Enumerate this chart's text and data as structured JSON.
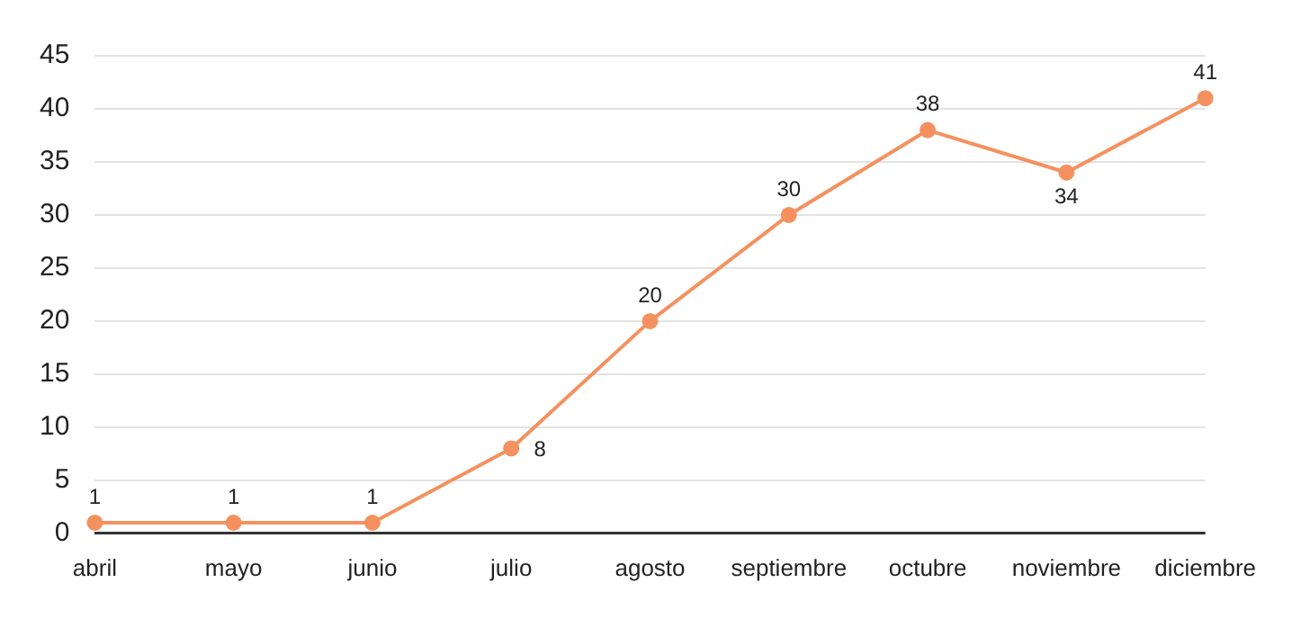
{
  "chart_data": {
    "type": "line",
    "categories": [
      "abril",
      "mayo",
      "junio",
      "julio",
      "agosto",
      "septiembre",
      "octubre",
      "noviembre",
      "diciembre"
    ],
    "values": [
      1,
      1,
      1,
      8,
      20,
      30,
      38,
      34,
      41
    ],
    "color": "#f4915e",
    "ylim": [
      0,
      45
    ],
    "yticks": [
      0,
      5,
      10,
      15,
      20,
      25,
      30,
      35,
      40,
      45
    ],
    "grid": "y",
    "marker": "circle",
    "line_style": "solid",
    "data_labels": true,
    "legend": false
  }
}
